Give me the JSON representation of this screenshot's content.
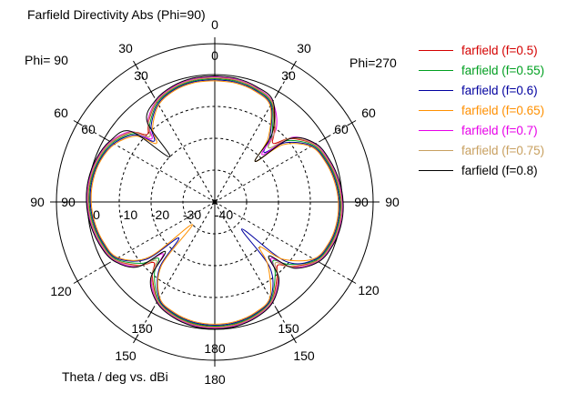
{
  "title": "Farfield Directivity Abs (Phi=90)",
  "left_plane_label": "Phi= 90",
  "right_plane_label": "Phi=270",
  "caption": "Theta / deg vs. dBi",
  "legend": [
    {
      "label": "farfield (f=0.5)",
      "color": "#d40000"
    },
    {
      "label": "farfield (f=0.55)",
      "color": "#00a020"
    },
    {
      "label": "farfield (f=0.6)",
      "color": "#0000a0"
    },
    {
      "label": "farfield (f=0.65)",
      "color": "#ff9000"
    },
    {
      "label": "farfield (f=0.7)",
      "color": "#e800e8"
    },
    {
      "label": "farfield (f=0.75)",
      "color": "#c8a060"
    },
    {
      "label": "farfield (f=0.8)",
      "color": "#000000"
    }
  ],
  "chart_data": {
    "type": "line",
    "subtype": "polar",
    "title": "Farfield Directivity Abs (Phi=90)",
    "angular_axis": "Theta / deg",
    "radial_axis": "dBi",
    "radial_range": [
      -40,
      0
    ],
    "radial_ticks": [
      "0",
      "-10",
      "-20",
      "-30",
      "-40"
    ],
    "grid": "on",
    "legend_position": "right",
    "angle_labels_outer": [
      {
        "a": 0,
        "t": "0"
      },
      {
        "a": 30,
        "t": "30"
      },
      {
        "a": 60,
        "t": "60"
      },
      {
        "a": 90,
        "t": "90"
      },
      {
        "a": 120,
        "t": "120"
      },
      {
        "a": 150,
        "t": "150"
      },
      {
        "a": 180,
        "t": "180"
      },
      {
        "a": 210,
        "t": "150"
      },
      {
        "a": 240,
        "t": "120"
      },
      {
        "a": 270,
        "t": "90"
      },
      {
        "a": 300,
        "t": "60"
      },
      {
        "a": 330,
        "t": "30"
      }
    ],
    "angle_labels_inner": [
      {
        "a": 0,
        "t": "0"
      },
      {
        "a": 30,
        "t": "30"
      },
      {
        "a": 60,
        "t": "60"
      },
      {
        "a": 90,
        "t": "90"
      },
      {
        "a": 150,
        "t": "150"
      },
      {
        "a": 180,
        "t": "180"
      },
      {
        "a": 210,
        "t": "150"
      },
      {
        "a": 270,
        "t": "90"
      },
      {
        "a": 300,
        "t": "60"
      },
      {
        "a": 330,
        "t": "30"
      }
    ],
    "theta": [
      0,
      10,
      20,
      30,
      40,
      45,
      50,
      60,
      70,
      80,
      90,
      100,
      110,
      120,
      130,
      135,
      140,
      150,
      160,
      170,
      180,
      190,
      200,
      210,
      220,
      225,
      230,
      240,
      250,
      260,
      270,
      280,
      290,
      300,
      310,
      315,
      320,
      330,
      340,
      350,
      360
    ],
    "series": [
      {
        "name": "farfield (f=0.5)",
        "color": "#d40000",
        "values": [
          -1.0,
          -1.2,
          -2.1,
          -4.0,
          -11,
          -14,
          -9,
          -4.0,
          -2.2,
          -1.0,
          -0.3,
          -0.3,
          -1.1,
          -3.0,
          -8.5,
          -12,
          -9.5,
          -4.2,
          -2.1,
          -1.0,
          -0.7,
          -1.0,
          -2.1,
          -4.2,
          -9.5,
          -13,
          -9.0,
          -3.8,
          -2.0,
          -0.9,
          -0.3,
          -0.3,
          -1.0,
          -2.5,
          -6.0,
          -10,
          -7.5,
          -3.6,
          -1.9,
          -1.1,
          -1.0
        ]
      },
      {
        "name": "farfield (f=0.55)",
        "color": "#00a020",
        "values": [
          -1.3,
          -1.5,
          -2.4,
          -4.4,
          -12,
          -16,
          -10,
          -4.4,
          -2.5,
          -1.3,
          -0.6,
          -0.6,
          -1.4,
          -3.4,
          -9.5,
          -14,
          -10.5,
          -4.6,
          -2.4,
          -1.3,
          -1.0,
          -1.3,
          -2.4,
          -4.6,
          -10.5,
          -15,
          -10,
          -4.2,
          -2.3,
          -1.2,
          -0.6,
          -0.6,
          -1.3,
          -2.9,
          -6.6,
          -11,
          -8.2,
          -4.0,
          -2.2,
          -1.4,
          -1.3
        ]
      },
      {
        "name": "farfield (f=0.6)",
        "color": "#0000a0",
        "values": [
          -1.6,
          -1.8,
          -2.7,
          -4.8,
          -13,
          -18,
          -11,
          -4.8,
          -2.8,
          -1.6,
          -0.9,
          -0.9,
          -1.7,
          -3.8,
          -11,
          -28,
          -13,
          -5.0,
          -2.7,
          -1.6,
          -1.3,
          -1.6,
          -2.7,
          -5.0,
          -13,
          -24,
          -12,
          -4.6,
          -2.6,
          -1.5,
          -0.9,
          -0.9,
          -1.6,
          -3.3,
          -7.2,
          -13,
          -8.9,
          -4.4,
          -2.5,
          -1.7,
          -1.6
        ]
      },
      {
        "name": "farfield (f=0.65)",
        "color": "#ff9000",
        "values": [
          -1.9,
          -2.1,
          -3.0,
          -5.2,
          -14,
          -22,
          -12,
          -5.2,
          -3.1,
          -1.9,
          -1.2,
          -1.2,
          -2.0,
          -4.2,
          -12,
          -20,
          -14,
          -5.4,
          -3.0,
          -1.9,
          -1.6,
          -1.9,
          -3.0,
          -5.4,
          -14,
          -30,
          -13,
          -5.0,
          -2.9,
          -1.8,
          -1.2,
          -1.2,
          -1.9,
          -3.7,
          -7.8,
          -14,
          -9.6,
          -4.8,
          -2.8,
          -2.0,
          -1.9
        ]
      },
      {
        "name": "farfield (f=0.7)",
        "color": "#e800e8",
        "values": [
          -0.7,
          -0.9,
          -1.8,
          -3.7,
          -10,
          -19,
          -8.5,
          -3.7,
          -1.9,
          -0.7,
          0.0,
          0.0,
          -0.8,
          -2.7,
          -8.0,
          -15,
          -9.0,
          -3.9,
          -1.8,
          -0.7,
          -0.4,
          -0.7,
          -1.8,
          -3.9,
          -9.0,
          -17,
          -8.5,
          -3.5,
          -1.7,
          -0.6,
          0.0,
          0.0,
          -0.7,
          -2.2,
          -5.7,
          -12,
          -7.2,
          -3.3,
          -1.6,
          -0.8,
          -0.7
        ]
      },
      {
        "name": "farfield (f=0.75)",
        "color": "#c8a060",
        "values": [
          -0.9,
          -1.1,
          -2.0,
          -3.9,
          -10.5,
          -16,
          -8.8,
          -3.9,
          -2.1,
          -0.9,
          -0.2,
          -0.2,
          -1.0,
          -2.9,
          -8.2,
          -13,
          -9.2,
          -4.1,
          -2.0,
          -0.9,
          -0.6,
          -0.9,
          -2.0,
          -4.1,
          -9.2,
          -14,
          -8.8,
          -3.7,
          -1.9,
          -0.8,
          -0.2,
          -0.2,
          -0.9,
          -2.4,
          -5.9,
          -11,
          -7.4,
          -3.5,
          -1.8,
          -1.0,
          -0.9
        ]
      },
      {
        "name": "farfield (f=0.8)",
        "color": "#000000",
        "values": [
          -0.4,
          -0.6,
          -1.5,
          -3.4,
          -12,
          -22,
          -9,
          -3.4,
          -1.6,
          -0.4,
          0.3,
          0.3,
          -0.5,
          -2.4,
          -7.7,
          -16,
          -8.7,
          -3.6,
          -1.5,
          -0.4,
          -0.1,
          -0.4,
          -1.5,
          -3.6,
          -8.7,
          -18,
          -8.2,
          -3.2,
          -1.4,
          -0.3,
          0.3,
          0.3,
          -0.4,
          -1.9,
          -5.4,
          -20,
          -6.9,
          -3.0,
          -1.3,
          -0.5,
          -0.4
        ]
      }
    ]
  }
}
